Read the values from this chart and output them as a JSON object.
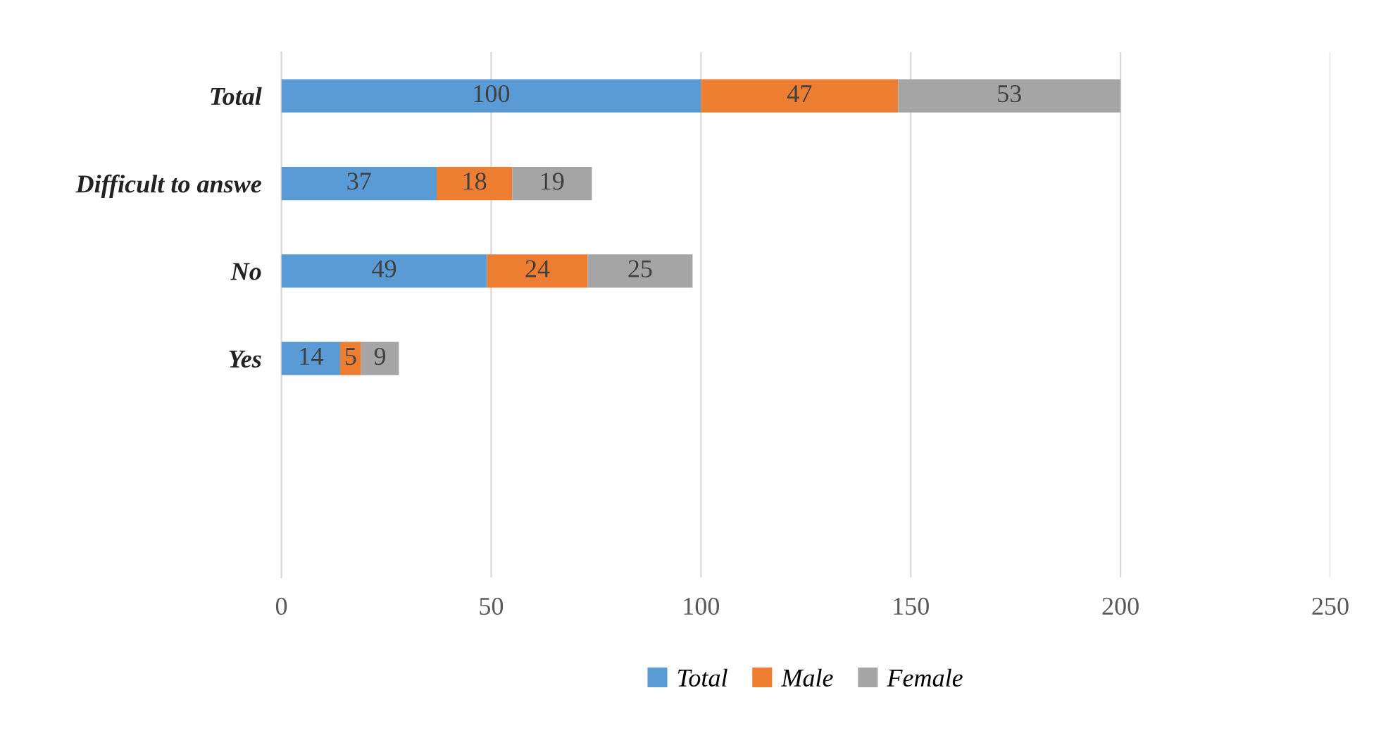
{
  "chart_data": {
    "type": "bar",
    "orientation": "horizontal",
    "stacked": true,
    "categories": [
      "Total",
      "Difficult to answe",
      "No",
      "Yes",
      null,
      null
    ],
    "series": [
      {
        "name": "Total",
        "color": "#5b9bd5",
        "values": [
          100,
          37,
          49,
          14,
          null,
          null
        ]
      },
      {
        "name": "Male",
        "color": "#ed7d31",
        "values": [
          47,
          18,
          24,
          5,
          null,
          null
        ]
      },
      {
        "name": "Female",
        "color": "#a5a5a5",
        "values": [
          53,
          19,
          25,
          9,
          null,
          null
        ]
      }
    ],
    "xlim": [
      0,
      250
    ],
    "xticks": [
      0,
      50,
      100,
      150,
      200,
      250
    ],
    "grid": "x",
    "legend": "bottom",
    "data_labels": true
  }
}
